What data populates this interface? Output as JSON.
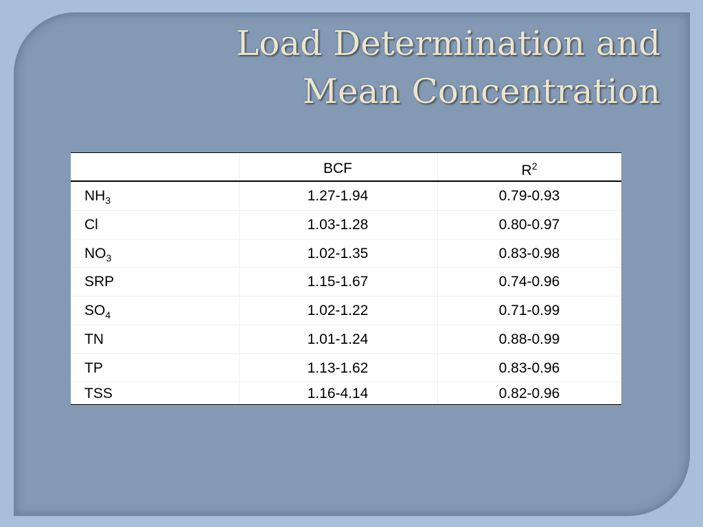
{
  "slide": {
    "title_lines": [
      "Load Determination and",
      "Mean Concentration"
    ],
    "table": {
      "header": [
        {
          "text": "BCF"
        },
        {
          "text": "R",
          "sup": "2"
        }
      ],
      "rows": [
        {
          "label": "NH",
          "label_sub": "3",
          "bcf": "1.27-1.94",
          "r2": "0.79-0.93"
        },
        {
          "label": "Cl",
          "bcf": "1.03-1.28",
          "r2": "0.80-0.97"
        },
        {
          "label": "NO",
          "label_sub": "3",
          "bcf": "1.02-1.35",
          "r2": "0.83-0.98"
        },
        {
          "label": "SRP",
          "bcf": "1.15-1.67",
          "r2": "0.74-0.96"
        },
        {
          "label": "SO",
          "label_sub": "4",
          "bcf": "1.02-1.22",
          "r2": "0.71-0.99"
        },
        {
          "label": "TN",
          "bcf": "1.01-1.24",
          "r2": "0.88-0.99"
        },
        {
          "label": "TP",
          "bcf": "1.13-1.62",
          "r2": "0.83-0.96"
        },
        {
          "label": "TSS",
          "bcf": "1.16-4.14",
          "r2": "0.82-0.96"
        }
      ]
    }
  }
}
